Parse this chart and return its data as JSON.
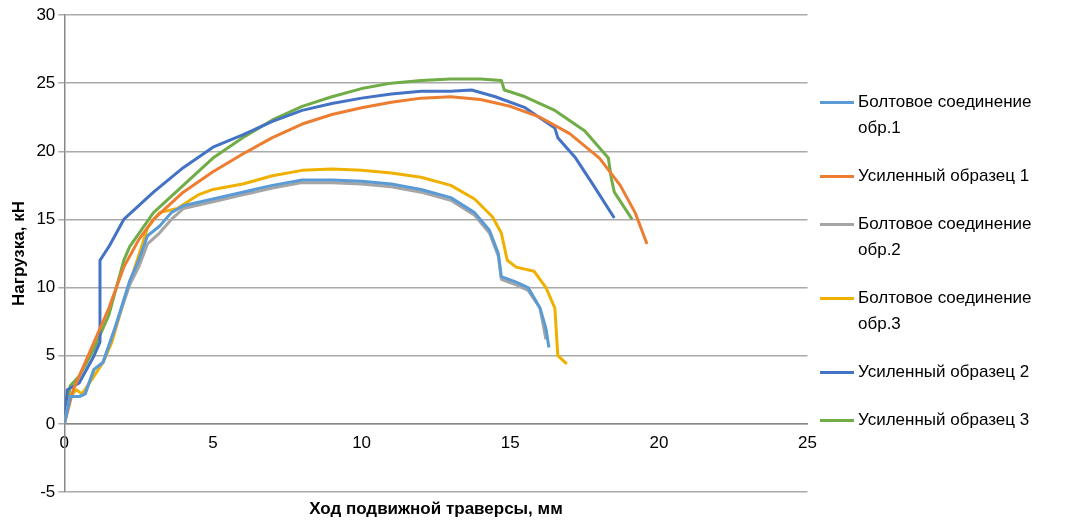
{
  "chart_data": {
    "type": "line",
    "xlabel": "Ход подвижной траверсы, мм",
    "ylabel": "Нагрузка, кН",
    "xlim": [
      0,
      25
    ],
    "xticks": [
      0,
      5,
      10,
      15,
      20,
      25
    ],
    "ylim": [
      -5,
      30
    ],
    "yticks": [
      -5,
      0,
      5,
      10,
      15,
      20,
      25,
      30
    ],
    "grid": "y",
    "legend": "right",
    "marker": "none",
    "line_style": "solid",
    "series": [
      {
        "name": "Болтовое соединение обр.1",
        "color": "#5b9bd5",
        "x": [
          0,
          0.2,
          0.5,
          0.7,
          1,
          1.3,
          1.7,
          2.2,
          2.5,
          2.8,
          3.2,
          3.6,
          4,
          5,
          6,
          7,
          8,
          9,
          10,
          11,
          12,
          13,
          13.8,
          14.3,
          14.6,
          14.7,
          15.2,
          15.6,
          16,
          16.2,
          16.3
        ],
        "values": [
          0,
          2,
          2,
          2.2,
          4,
          4.5,
          7,
          10.5,
          12,
          13.8,
          14.5,
          15.5,
          16,
          16.5,
          17,
          17.5,
          17.9,
          17.9,
          17.8,
          17.6,
          17.2,
          16.6,
          15.5,
          14.2,
          12.5,
          10.8,
          10.4,
          10,
          8.5,
          7,
          5.6
        ]
      },
      {
        "name": "Усиленный образец 1",
        "color": "#ed7d31",
        "x": [
          0,
          0.3,
          1,
          1.5,
          2,
          2.5,
          3,
          4,
          5,
          6,
          7,
          8,
          9,
          10,
          11,
          12,
          13,
          14,
          15,
          16,
          17,
          18,
          18.7,
          19.2,
          19.6
        ],
        "values": [
          0,
          2.5,
          6,
          8.5,
          11.5,
          13.5,
          15,
          17,
          18.5,
          19.8,
          21,
          22,
          22.7,
          23.2,
          23.6,
          23.9,
          24,
          23.8,
          23.3,
          22.5,
          21.3,
          19.5,
          17.5,
          15.5,
          13.2
        ]
      },
      {
        "name": "Болтовое соединение обр.2",
        "color": "#a5a5a5",
        "x": [
          0,
          0.2,
          0.5,
          0.7,
          1,
          1.3,
          1.7,
          2.2,
          2.5,
          2.8,
          3.2,
          3.6,
          4,
          5,
          6,
          7,
          8,
          9,
          10,
          11,
          12,
          13,
          13.8,
          14.3,
          14.6,
          14.7,
          15.2,
          15.6,
          16,
          16.2
        ],
        "values": [
          0,
          2,
          2,
          2.2,
          4,
          4.5,
          7,
          10.2,
          11.5,
          13.2,
          14,
          15,
          15.8,
          16.3,
          16.8,
          17.3,
          17.7,
          17.7,
          17.6,
          17.4,
          17,
          16.4,
          15.3,
          14,
          12.3,
          10.6,
          10.2,
          9.8,
          8.5,
          6.2
        ]
      },
      {
        "name": "Болтовое соединение обр.3",
        "color": "#f0b000",
        "x": [
          0,
          0.2,
          0.4,
          0.6,
          1,
          1.3,
          1.6,
          2,
          2.3,
          2.6,
          2.8,
          3.2,
          3.8,
          4.5,
          5,
          6,
          7,
          8,
          9,
          10,
          11,
          12,
          13,
          13.8,
          14.4,
          14.7,
          14.9,
          15.2,
          15.8,
          16.2,
          16.5,
          16.6,
          16.9
        ],
        "values": [
          0,
          2,
          2.5,
          2.2,
          3.5,
          4.5,
          6,
          9,
          11,
          13,
          14.4,
          15.5,
          15.8,
          16.8,
          17.2,
          17.6,
          18.2,
          18.6,
          18.7,
          18.6,
          18.4,
          18.1,
          17.5,
          16.5,
          15.2,
          14,
          12,
          11.5,
          11.2,
          10,
          8.5,
          5,
          4.4
        ]
      },
      {
        "name": "Усиленный образец 2",
        "color": "#4472c4",
        "x": [
          0,
          0.1,
          0.5,
          1,
          1.2,
          1.2,
          1.5,
          2,
          3,
          4,
          5,
          6,
          7,
          8,
          9,
          10,
          11,
          12,
          13,
          13.7,
          14.5,
          15.5,
          16.5,
          16.6,
          17.2,
          17.8,
          18.5
        ],
        "values": [
          0,
          2.5,
          3,
          5,
          6,
          12,
          13,
          15,
          17,
          18.8,
          20.3,
          21.2,
          22.2,
          23,
          23.5,
          23.9,
          24.2,
          24.4,
          24.4,
          24.5,
          24,
          23.2,
          21.7,
          21,
          19.5,
          17.5,
          15.1
        ]
      },
      {
        "name": "Усиленный образец 3",
        "color": "#70ad47",
        "x": [
          0,
          0.2,
          0.5,
          1,
          1.5,
          2,
          2.2,
          3,
          4,
          5,
          6,
          7,
          8,
          9,
          10,
          11,
          12,
          13,
          14,
          14.7,
          14.8,
          15.5,
          16.5,
          17.5,
          18.3,
          18.4,
          18.5,
          19.1
        ],
        "values": [
          0,
          2.8,
          3.5,
          5.5,
          8,
          12,
          13,
          15.5,
          17.5,
          19.5,
          21,
          22.3,
          23.3,
          24,
          24.6,
          25,
          25.2,
          25.3,
          25.3,
          25.2,
          24.5,
          24,
          23,
          21.5,
          19.5,
          18,
          17,
          15
        ]
      }
    ]
  }
}
